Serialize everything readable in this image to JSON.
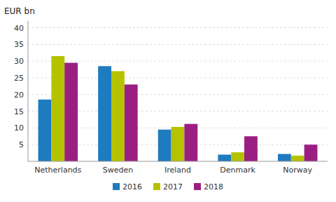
{
  "chart_data": {
    "type": "bar",
    "y_label": "EUR bn",
    "categories": [
      "Netherlands",
      "Sweden",
      "Ireland",
      "Denmark",
      "Norway"
    ],
    "series": [
      {
        "name": "2016",
        "color": "#1f7bbf",
        "values": [
          18.5,
          28.5,
          9.5,
          2.0,
          2.2
        ]
      },
      {
        "name": "2017",
        "color": "#b5c200",
        "values": [
          31.5,
          27.0,
          10.3,
          2.7,
          1.7
        ]
      },
      {
        "name": "2018",
        "color": "#9b1f82",
        "values": [
          29.5,
          23.0,
          11.2,
          7.5,
          5.0
        ]
      }
    ],
    "ylim": [
      0,
      42
    ],
    "yticks": [
      5,
      10,
      15,
      20,
      25,
      30,
      35,
      40
    ],
    "grid": true,
    "legend": "bottom"
  }
}
